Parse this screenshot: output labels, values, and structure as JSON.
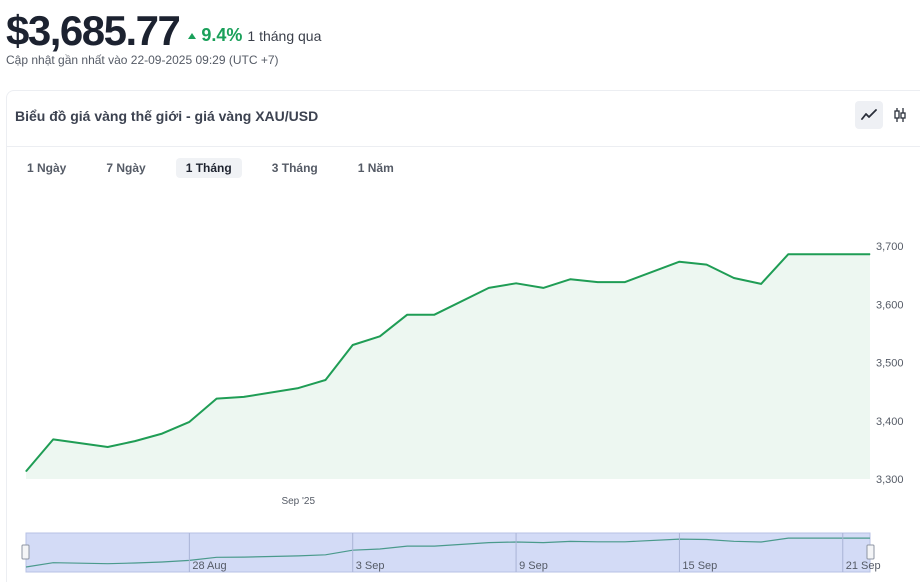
{
  "header": {
    "price": "$3,685.77",
    "change_pct": "9.4%",
    "change_period": "1 tháng qua",
    "updated": "Cập nhật gần nhất vào 22-09-2025 09:29 (UTC +7)"
  },
  "card": {
    "title": "Biểu đồ giá vàng thế giới - giá vàng XAU/USD",
    "toggle": {
      "line": "line-chart-icon",
      "candle": "candlestick-icon",
      "active": "line"
    }
  },
  "ranges": [
    {
      "label": "1 Ngày"
    },
    {
      "label": "7 Ngày"
    },
    {
      "label": "1 Tháng"
    },
    {
      "label": "3 Tháng"
    },
    {
      "label": "1 Năm"
    }
  ],
  "active_range": "1 Tháng",
  "navigator": {
    "labels": [
      "28 Aug",
      "3 Sep",
      "9 Sep",
      "15 Sep",
      "21 Sep"
    ]
  },
  "colors": {
    "line": "#1f9d55",
    "area": "#edf7f1",
    "positive": "#1aa05a",
    "navigator_fill": "#d3dbf6",
    "navigator_line": "#4a9a8c"
  },
  "chart_data": {
    "type": "area",
    "title": "",
    "xlabel": "",
    "ylabel": "",
    "x_tick_labels": [
      "Sep '25"
    ],
    "y_ticks": [
      "3,300",
      "3,400",
      "3,500",
      "3,600",
      "3,700"
    ],
    "ylim": [
      3300,
      3700
    ],
    "grid": false,
    "legend": "none",
    "series": [
      {
        "x": [
          "2025-08-22",
          "2025-08-23",
          "2025-08-25",
          "2025-08-26",
          "2025-08-27",
          "2025-08-28",
          "2025-08-29",
          "2025-08-30",
          "2025-09-01",
          "2025-09-02",
          "2025-09-03",
          "2025-09-04",
          "2025-09-05",
          "2025-09-06",
          "2025-09-08",
          "2025-09-09",
          "2025-09-10",
          "2025-09-11",
          "2025-09-12",
          "2025-09-13",
          "2025-09-15",
          "2025-09-16",
          "2025-09-17",
          "2025-09-18",
          "2025-09-19",
          "2025-09-20",
          "2025-09-22"
        ],
        "values": [
          3313,
          3368,
          3355,
          3365,
          3378,
          3398,
          3438,
          3441,
          3456,
          3470,
          3530,
          3545,
          3582,
          3582,
          3628,
          3636,
          3628,
          3643,
          3638,
          3638,
          3673,
          3668,
          3645,
          3635,
          3686,
          3686,
          3686
        ]
      }
    ]
  }
}
